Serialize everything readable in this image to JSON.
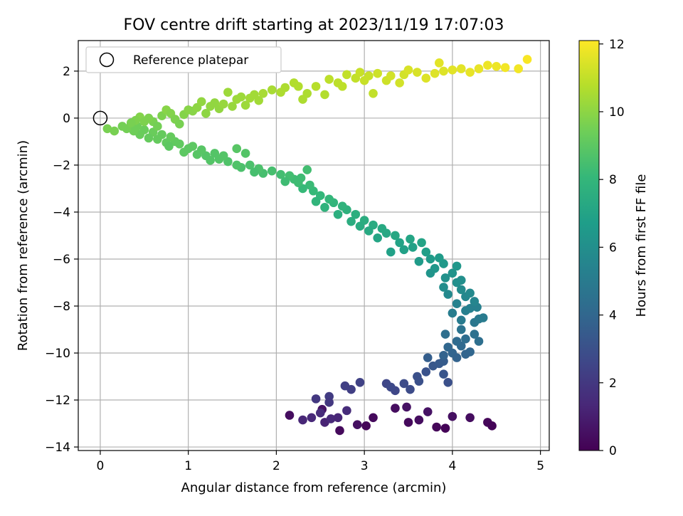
{
  "chart_data": {
    "type": "scatter",
    "title": "FOV centre drift starting at 2023/11/19 17:07:03",
    "xlabel": "Angular distance from reference (arcmin)",
    "ylabel": "Rotation from reference (arcmin)",
    "xlim": [
      -0.25,
      5.1
    ],
    "ylim": [
      -14.15,
      3.3
    ],
    "x_ticks": [
      0,
      1,
      2,
      3,
      4,
      5
    ],
    "x_tick_labels": [
      "0",
      "1",
      "2",
      "3",
      "4",
      "5"
    ],
    "y_ticks": [
      2,
      0,
      -2,
      -4,
      -6,
      -8,
      -10,
      -12,
      -14
    ],
    "y_tick_labels": [
      "2",
      "0",
      "−2",
      "−4",
      "−6",
      "−8",
      "−10",
      "−12",
      "−14"
    ],
    "grid": true,
    "legend": {
      "placement": "top-left",
      "entries": [
        "Reference platepar"
      ]
    },
    "reference_point": {
      "x": 0,
      "y": 0,
      "label": "Reference platepar"
    },
    "colorbar": {
      "label": "Hours from first FF file",
      "range": [
        0,
        12.1
      ],
      "ticks": [
        0,
        2,
        4,
        6,
        8,
        10,
        12
      ],
      "tick_labels": [
        "0",
        "2",
        "4",
        "6",
        "8",
        "10",
        "12"
      ],
      "colormap": "viridis",
      "colors": [
        "#440154",
        "#482878",
        "#3e4989",
        "#31688e",
        "#26828e",
        "#1f9e89",
        "#35b779",
        "#6ece58",
        "#b5de2b",
        "#fde725"
      ]
    },
    "series": [
      {
        "points": [
          [
            2.15,
            -12.65,
            0.4
          ],
          [
            2.52,
            -12.4,
            0.6
          ],
          [
            2.92,
            -13.05,
            0.5
          ],
          [
            2.72,
            -13.3,
            0.3
          ],
          [
            3.02,
            -13.1,
            0.2
          ],
          [
            3.1,
            -12.75,
            0.3
          ],
          [
            3.35,
            -12.35,
            0.4
          ],
          [
            3.48,
            -12.3,
            0.6
          ],
          [
            3.5,
            -12.95,
            0.3
          ],
          [
            3.62,
            -12.85,
            0.4
          ],
          [
            3.72,
            -12.5,
            0.6
          ],
          [
            3.82,
            -13.15,
            0.2
          ],
          [
            3.92,
            -13.2,
            0.1
          ],
          [
            4.0,
            -12.7,
            0.5
          ],
          [
            4.2,
            -12.75,
            0.4
          ],
          [
            4.4,
            -12.95,
            0.2
          ],
          [
            4.45,
            -13.1,
            0.1
          ],
          [
            2.3,
            -12.85,
            1.3
          ],
          [
            2.4,
            -12.75,
            1.4
          ],
          [
            2.5,
            -12.55,
            1.5
          ],
          [
            2.55,
            -12.95,
            1.2
          ],
          [
            2.62,
            -12.8,
            1.4
          ],
          [
            2.7,
            -12.75,
            1.3
          ],
          [
            2.8,
            -12.45,
            1.5
          ],
          [
            2.45,
            -11.95,
            2.0
          ],
          [
            2.6,
            -11.85,
            2.1
          ],
          [
            2.6,
            -12.1,
            2.0
          ],
          [
            2.78,
            -11.4,
            2.3
          ],
          [
            2.85,
            -11.55,
            2.3
          ],
          [
            2.95,
            -11.25,
            2.4
          ],
          [
            3.25,
            -11.3,
            2.6
          ],
          [
            3.35,
            -11.6,
            2.6
          ],
          [
            3.45,
            -11.3,
            2.8
          ],
          [
            3.52,
            -11.55,
            2.8
          ],
          [
            3.6,
            -11.0,
            3.0
          ],
          [
            3.7,
            -10.8,
            3.1
          ],
          [
            3.78,
            -10.55,
            3.3
          ],
          [
            3.85,
            -10.45,
            3.4
          ],
          [
            3.95,
            -11.25,
            3.0
          ],
          [
            3.62,
            -11.2,
            3.0
          ],
          [
            3.3,
            -11.45,
            2.7
          ],
          [
            3.9,
            -10.9,
            3.2
          ],
          [
            3.72,
            -10.2,
            3.6
          ],
          [
            3.9,
            -10.35,
            3.5
          ],
          [
            3.9,
            -10.1,
            3.8
          ],
          [
            3.95,
            -9.75,
            4.0
          ],
          [
            4.0,
            -10.0,
            3.9
          ],
          [
            4.05,
            -10.2,
            3.8
          ],
          [
            4.1,
            -9.7,
            4.1
          ],
          [
            4.15,
            -9.4,
            4.3
          ],
          [
            4.2,
            -9.95,
            4.0
          ],
          [
            4.25,
            -9.2,
            4.5
          ],
          [
            4.05,
            -9.5,
            4.2
          ],
          [
            3.92,
            -9.2,
            4.4
          ],
          [
            4.1,
            -9.0,
            4.6
          ],
          [
            4.25,
            -8.7,
            4.8
          ],
          [
            4.3,
            -9.5,
            4.4
          ],
          [
            4.15,
            -10.05,
            3.9
          ],
          [
            4.3,
            -8.55,
            4.9
          ],
          [
            4.35,
            -8.5,
            5.0
          ],
          [
            4.0,
            -8.3,
            5.1
          ],
          [
            4.15,
            -8.2,
            5.2
          ],
          [
            4.1,
            -8.6,
            5.0
          ],
          [
            4.2,
            -8.1,
            5.3
          ],
          [
            4.28,
            -8.05,
            5.3
          ],
          [
            4.05,
            -7.9,
            5.4
          ],
          [
            4.15,
            -7.6,
            5.6
          ],
          [
            4.25,
            -7.8,
            5.5
          ],
          [
            4.1,
            -7.3,
            5.8
          ],
          [
            4.2,
            -7.45,
            5.7
          ],
          [
            4.05,
            -7.0,
            6.0
          ],
          [
            3.95,
            -7.5,
            5.7
          ],
          [
            4.1,
            -6.9,
            6.0
          ],
          [
            4.0,
            -6.6,
            6.2
          ],
          [
            3.92,
            -6.8,
            6.1
          ],
          [
            4.05,
            -6.3,
            6.4
          ],
          [
            3.9,
            -6.2,
            6.5
          ],
          [
            3.8,
            -6.4,
            6.4
          ],
          [
            3.85,
            -5.95,
            6.6
          ],
          [
            3.75,
            -6.0,
            6.6
          ],
          [
            3.7,
            -5.7,
            6.8
          ],
          [
            3.62,
            -6.1,
            6.6
          ],
          [
            3.75,
            -6.6,
            6.3
          ],
          [
            3.9,
            -7.2,
            5.9
          ],
          [
            3.55,
            -5.5,
            6.9
          ],
          [
            3.65,
            -5.3,
            7.0
          ],
          [
            3.45,
            -5.6,
            6.9
          ],
          [
            3.52,
            -5.15,
            7.1
          ],
          [
            3.4,
            -5.3,
            7.0
          ],
          [
            3.3,
            -5.7,
            6.9
          ],
          [
            3.35,
            -5.0,
            7.2
          ],
          [
            3.25,
            -4.9,
            7.2
          ],
          [
            3.2,
            -4.7,
            7.3
          ],
          [
            3.15,
            -5.1,
            7.1
          ],
          [
            3.1,
            -4.55,
            7.4
          ],
          [
            3.05,
            -4.8,
            7.3
          ],
          [
            3.0,
            -4.35,
            7.5
          ],
          [
            2.95,
            -4.6,
            7.4
          ],
          [
            2.9,
            -4.1,
            7.6
          ],
          [
            2.85,
            -4.4,
            7.5
          ],
          [
            2.8,
            -3.9,
            7.7
          ],
          [
            2.75,
            -3.75,
            7.8
          ],
          [
            2.7,
            -4.1,
            7.6
          ],
          [
            2.65,
            -3.6,
            7.9
          ],
          [
            2.6,
            -3.45,
            8.0
          ],
          [
            2.55,
            -3.8,
            7.8
          ],
          [
            2.5,
            -3.3,
            8.0
          ],
          [
            2.45,
            -3.55,
            7.9
          ],
          [
            2.42,
            -3.1,
            8.1
          ],
          [
            2.38,
            -2.85,
            8.2
          ],
          [
            2.3,
            -3.0,
            8.1
          ],
          [
            2.25,
            -2.75,
            8.3
          ],
          [
            2.2,
            -2.6,
            8.3
          ],
          [
            2.15,
            -2.45,
            8.4
          ],
          [
            2.1,
            -2.7,
            8.3
          ],
          [
            2.05,
            -2.4,
            8.4
          ],
          [
            2.35,
            -2.2,
            8.4
          ],
          [
            2.28,
            -2.55,
            8.3
          ],
          [
            1.95,
            -2.25,
            8.5
          ],
          [
            1.85,
            -2.35,
            8.5
          ],
          [
            1.8,
            -2.15,
            8.6
          ],
          [
            1.75,
            -2.3,
            8.5
          ],
          [
            1.7,
            -2.0,
            8.6
          ],
          [
            1.6,
            -2.1,
            8.6
          ],
          [
            1.55,
            -2.0,
            8.7
          ],
          [
            1.45,
            -1.85,
            8.7
          ],
          [
            1.4,
            -1.6,
            8.8
          ],
          [
            1.35,
            -1.75,
            8.8
          ],
          [
            1.3,
            -1.5,
            8.8
          ],
          [
            1.25,
            -1.8,
            8.8
          ],
          [
            1.2,
            -1.6,
            8.8
          ],
          [
            1.15,
            -1.35,
            8.9
          ],
          [
            1.1,
            -1.55,
            8.9
          ],
          [
            1.05,
            -1.2,
            9.0
          ],
          [
            1.0,
            -1.3,
            9.0
          ],
          [
            0.95,
            -1.45,
            9.0
          ],
          [
            0.9,
            -1.1,
            9.1
          ],
          [
            0.85,
            -1.0,
            9.1
          ],
          [
            0.8,
            -0.8,
            9.2
          ],
          [
            0.75,
            -1.05,
            9.1
          ],
          [
            0.7,
            -0.7,
            9.2
          ],
          [
            0.65,
            -0.9,
            9.2
          ],
          [
            0.6,
            -0.6,
            9.3
          ],
          [
            0.55,
            -0.85,
            9.2
          ],
          [
            0.5,
            -0.5,
            9.3
          ],
          [
            0.45,
            -0.7,
            9.3
          ],
          [
            0.42,
            -0.35,
            9.4
          ],
          [
            0.38,
            -0.55,
            9.4
          ],
          [
            0.35,
            -0.3,
            9.4
          ],
          [
            0.3,
            -0.45,
            9.5
          ],
          [
            0.25,
            -0.35,
            9.5
          ],
          [
            0.08,
            -0.45,
            9.6
          ],
          [
            0.16,
            -0.55,
            9.6
          ],
          [
            1.55,
            -1.3,
            8.9
          ],
          [
            1.65,
            -1.5,
            8.8
          ],
          [
            0.78,
            -1.2,
            9.0
          ],
          [
            0.6,
            -0.15,
            9.6
          ],
          [
            0.7,
            0.1,
            9.7
          ],
          [
            0.75,
            0.35,
            9.9
          ],
          [
            0.8,
            0.2,
            9.8
          ],
          [
            0.85,
            -0.05,
            9.7
          ],
          [
            0.9,
            -0.25,
            9.6
          ],
          [
            0.55,
            0.0,
            9.7
          ],
          [
            0.65,
            -0.35,
            9.5
          ],
          [
            0.45,
            0.05,
            9.8
          ],
          [
            0.5,
            -0.15,
            9.7
          ],
          [
            0.4,
            -0.1,
            9.7
          ],
          [
            0.35,
            -0.2,
            9.6
          ],
          [
            0.95,
            0.15,
            9.8
          ],
          [
            1.0,
            0.35,
            9.9
          ],
          [
            1.05,
            0.3,
            9.9
          ],
          [
            1.1,
            0.45,
            10.0
          ],
          [
            1.2,
            0.2,
            10.0
          ],
          [
            1.25,
            0.5,
            10.1
          ],
          [
            1.3,
            0.65,
            10.1
          ],
          [
            1.35,
            0.4,
            10.1
          ],
          [
            1.4,
            0.6,
            10.2
          ],
          [
            1.5,
            0.5,
            10.2
          ],
          [
            1.55,
            0.8,
            10.3
          ],
          [
            1.6,
            0.9,
            10.3
          ],
          [
            1.65,
            0.55,
            10.3
          ],
          [
            1.7,
            0.85,
            10.4
          ],
          [
            1.75,
            1.0,
            10.4
          ],
          [
            1.8,
            0.75,
            10.4
          ],
          [
            1.85,
            1.05,
            10.5
          ],
          [
            1.95,
            1.2,
            10.5
          ],
          [
            2.05,
            1.1,
            10.6
          ],
          [
            2.1,
            1.3,
            10.6
          ],
          [
            2.2,
            1.5,
            10.7
          ],
          [
            2.25,
            1.35,
            10.7
          ],
          [
            2.3,
            0.8,
            10.6
          ],
          [
            2.35,
            1.05,
            10.6
          ],
          [
            2.45,
            1.35,
            10.8
          ],
          [
            2.55,
            1.0,
            10.7
          ],
          [
            2.6,
            1.65,
            10.9
          ],
          [
            2.7,
            1.5,
            10.9
          ],
          [
            2.75,
            1.35,
            10.9
          ],
          [
            2.8,
            1.85,
            11.0
          ],
          [
            2.9,
            1.7,
            11.0
          ],
          [
            3.0,
            1.6,
            11.1
          ],
          [
            3.05,
            1.8,
            11.1
          ],
          [
            3.1,
            1.05,
            11.0
          ],
          [
            3.15,
            1.9,
            11.2
          ],
          [
            3.25,
            1.6,
            11.2
          ],
          [
            3.3,
            1.8,
            11.3
          ],
          [
            3.4,
            1.5,
            11.3
          ],
          [
            3.45,
            1.85,
            11.3
          ],
          [
            3.5,
            2.05,
            11.4
          ],
          [
            3.6,
            1.95,
            11.4
          ],
          [
            3.7,
            1.7,
            11.5
          ],
          [
            3.8,
            1.9,
            11.5
          ],
          [
            3.9,
            2.0,
            11.5
          ],
          [
            3.85,
            2.35,
            11.6
          ],
          [
            4.0,
            2.05,
            11.6
          ],
          [
            4.1,
            2.1,
            11.6
          ],
          [
            4.2,
            1.95,
            11.7
          ],
          [
            4.3,
            2.1,
            11.7
          ],
          [
            4.4,
            2.25,
            11.8
          ],
          [
            4.5,
            2.2,
            11.8
          ],
          [
            4.6,
            2.15,
            11.9
          ],
          [
            4.75,
            2.1,
            11.9
          ],
          [
            4.85,
            2.5,
            12.0
          ],
          [
            2.95,
            1.95,
            11.1
          ],
          [
            1.15,
            0.7,
            10.1
          ],
          [
            1.45,
            1.1,
            10.3
          ]
        ]
      }
    ]
  }
}
